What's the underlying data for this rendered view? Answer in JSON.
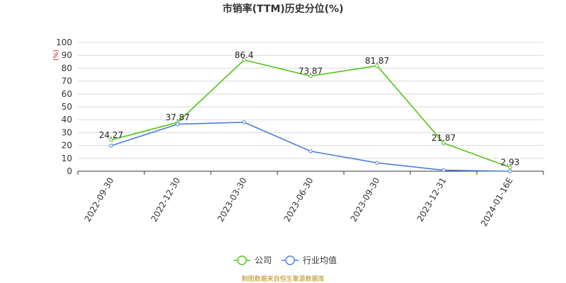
{
  "chart_data": {
    "type": "line",
    "title": "市销率(TTM)历史分位(%)",
    "y_unit": "(%)",
    "ylim": [
      0,
      100
    ],
    "yticks": [
      0,
      10,
      20,
      30,
      40,
      50,
      60,
      70,
      80,
      90,
      100
    ],
    "categories": [
      "2022-09-30",
      "2022-12-30",
      "2023-03-30",
      "2023-06-30",
      "2023-09-30",
      "2023-12-31",
      "2024-01-16E"
    ],
    "series": [
      {
        "name": "公司",
        "color": "#52c41a",
        "values": [
          24.27,
          37.87,
          86.4,
          73.87,
          81.87,
          21.87,
          2.93
        ],
        "labels": [
          "24.27",
          "37.87",
          "86.4",
          "73.87",
          "81.87",
          "21.87",
          "2.93"
        ]
      },
      {
        "name": "行业均值",
        "color": "#4a7fd8",
        "values": [
          19.8,
          36.5,
          38.0,
          15.5,
          6.5,
          0.8,
          0.0
        ]
      }
    ],
    "grid": true,
    "legend": "bottom-center",
    "source_note": "制图数据来自恒生聚源数据库"
  }
}
